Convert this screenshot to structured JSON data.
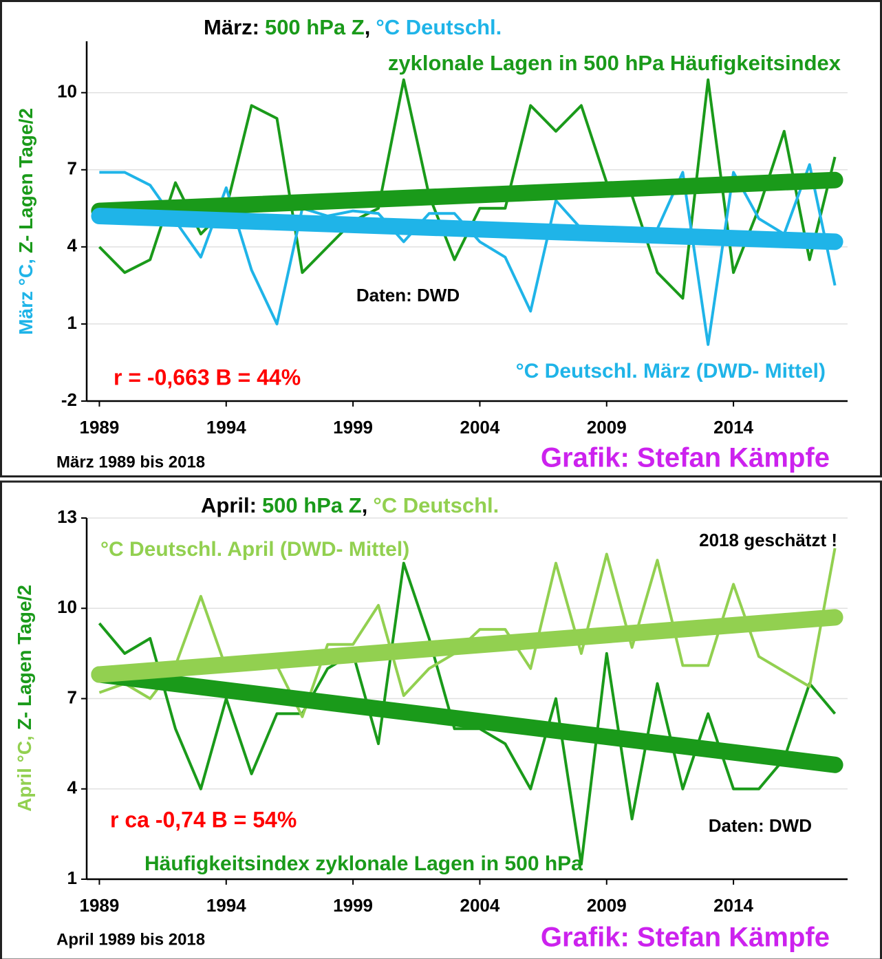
{
  "chart_data": [
    {
      "type": "line",
      "title_parts": [
        {
          "text": "März:",
          "color": "#000000"
        },
        {
          "text": "500 hPa Z",
          "color": "#1a9a1a"
        },
        {
          "text": ",",
          "color": "#000000"
        },
        {
          "text": "°C Deutschl.",
          "color": "#1fb4e8"
        }
      ],
      "y_label_parts": [
        {
          "text": "März °C,",
          "color": "#1fb4e8"
        },
        {
          "text": "Z- Lagen Tage/2",
          "color": "#1a9a1a"
        }
      ],
      "annotations": [
        {
          "text": "zyklonale Lagen in 500 hPa Häufigkeitsindex",
          "color": "#1a9a1a"
        },
        {
          "text": "Daten: DWD",
          "color": "#000000"
        },
        {
          "text": "r = -0,663 B = 44%",
          "color": "#ff0000"
        },
        {
          "text": "°C Deutschl. März (DWD- Mittel)",
          "color": "#1fb4e8"
        },
        {
          "text": "März 1989 bis 2018",
          "color": "#000000"
        },
        {
          "text": "Grafik: Stefan Kämpfe",
          "color": "#cc22ee"
        }
      ],
      "x": [
        1989,
        1990,
        1991,
        1992,
        1993,
        1994,
        1995,
        1996,
        1997,
        1998,
        1999,
        2000,
        2001,
        2002,
        2003,
        2004,
        2005,
        2006,
        2007,
        2008,
        2009,
        2010,
        2011,
        2012,
        2013,
        2014,
        2015,
        2016,
        2017,
        2018
      ],
      "xlim": [
        1988.5,
        2018.5
      ],
      "xticks": [
        1989,
        1994,
        1999,
        2004,
        2009,
        2014
      ],
      "ylim": [
        -2,
        12
      ],
      "yticks": [
        -2,
        1,
        4,
        7,
        10
      ],
      "grid": true,
      "series": [
        {
          "color": "#1a9a1a",
          "values": [
            4.0,
            3.0,
            3.5,
            6.5,
            4.5,
            5.5,
            9.5,
            9.0,
            3.0,
            4.0,
            5.0,
            5.5,
            10.5,
            6.0,
            3.5,
            5.5,
            5.5,
            9.5,
            8.5,
            9.5,
            6.5,
            6.0,
            3.0,
            2.0,
            10.5,
            3.0,
            5.5,
            8.5,
            3.5,
            7.5
          ],
          "trend": [
            5.4,
            6.6
          ]
        },
        {
          "color": "#1fb4e8",
          "values": [
            6.9,
            6.9,
            6.4,
            5.0,
            3.6,
            6.3,
            3.1,
            1.0,
            5.5,
            5.2,
            5.4,
            5.3,
            4.2,
            5.3,
            5.3,
            4.2,
            3.6,
            1.5,
            5.8,
            4.7,
            4.7,
            4.6,
            4.7,
            6.9,
            0.2,
            6.9,
            5.1,
            4.5,
            7.2,
            2.5
          ],
          "trend": [
            5.2,
            4.2
          ]
        }
      ]
    },
    {
      "type": "line",
      "title_parts": [
        {
          "text": "April:",
          "color": "#000000"
        },
        {
          "text": "500 hPa Z",
          "color": "#1a9a1a"
        },
        {
          "text": ",",
          "color": "#000000"
        },
        {
          "text": "°C Deutschl.",
          "color": "#92d050"
        }
      ],
      "y_label_parts": [
        {
          "text": "April °C,",
          "color": "#92d050"
        },
        {
          "text": "Z- Lagen Tage/2",
          "color": "#1a9a1a"
        }
      ],
      "annotations": [
        {
          "text": "°C Deutschl. April (DWD- Mittel)",
          "color": "#92d050"
        },
        {
          "text": "2018 geschätzt !",
          "color": "#000000"
        },
        {
          "text": "r ca -0,74 B = 54%",
          "color": "#ff0000"
        },
        {
          "text": "Daten: DWD",
          "color": "#000000"
        },
        {
          "text": "Häufigkeitsindex zyklonale Lagen in 500 hPa",
          "color": "#1a9a1a"
        },
        {
          "text": "April 1989 bis 2018",
          "color": "#000000"
        },
        {
          "text": "Grafik: Stefan Kämpfe",
          "color": "#cc22ee"
        }
      ],
      "x": [
        1989,
        1990,
        1991,
        1992,
        1993,
        1994,
        1995,
        1996,
        1997,
        1998,
        1999,
        2000,
        2001,
        2002,
        2003,
        2004,
        2005,
        2006,
        2007,
        2008,
        2009,
        2010,
        2011,
        2012,
        2013,
        2014,
        2015,
        2016,
        2017,
        2018
      ],
      "xlim": [
        1988.5,
        2018.5
      ],
      "xticks": [
        1989,
        1994,
        1999,
        2004,
        2009,
        2014
      ],
      "ylim": [
        1,
        13
      ],
      "yticks": [
        1,
        4,
        7,
        10,
        13
      ],
      "grid": true,
      "series": [
        {
          "color": "#1a9a1a",
          "values": [
            9.5,
            8.5,
            9.0,
            6.0,
            4.0,
            7.0,
            4.5,
            6.5,
            6.5,
            8.0,
            8.5,
            5.5,
            11.5,
            9.0,
            6.0,
            6.0,
            5.5,
            4.0,
            7.0,
            1.5,
            8.5,
            3.0,
            7.5,
            4.0,
            6.5,
            4.0,
            4.0,
            5.0,
            7.5,
            6.5
          ],
          "trend": [
            7.8,
            4.8
          ]
        },
        {
          "color": "#92d050",
          "values": [
            7.2,
            7.5,
            7.0,
            8.1,
            10.4,
            8.0,
            8.2,
            8.1,
            6.4,
            8.8,
            8.8,
            10.1,
            7.1,
            8.0,
            8.5,
            9.3,
            9.3,
            8.0,
            11.5,
            8.5,
            11.8,
            8.7,
            11.6,
            8.1,
            8.1,
            10.8,
            8.4,
            7.9,
            7.4,
            12.0
          ],
          "trend": [
            7.8,
            9.7
          ]
        }
      ]
    }
  ]
}
